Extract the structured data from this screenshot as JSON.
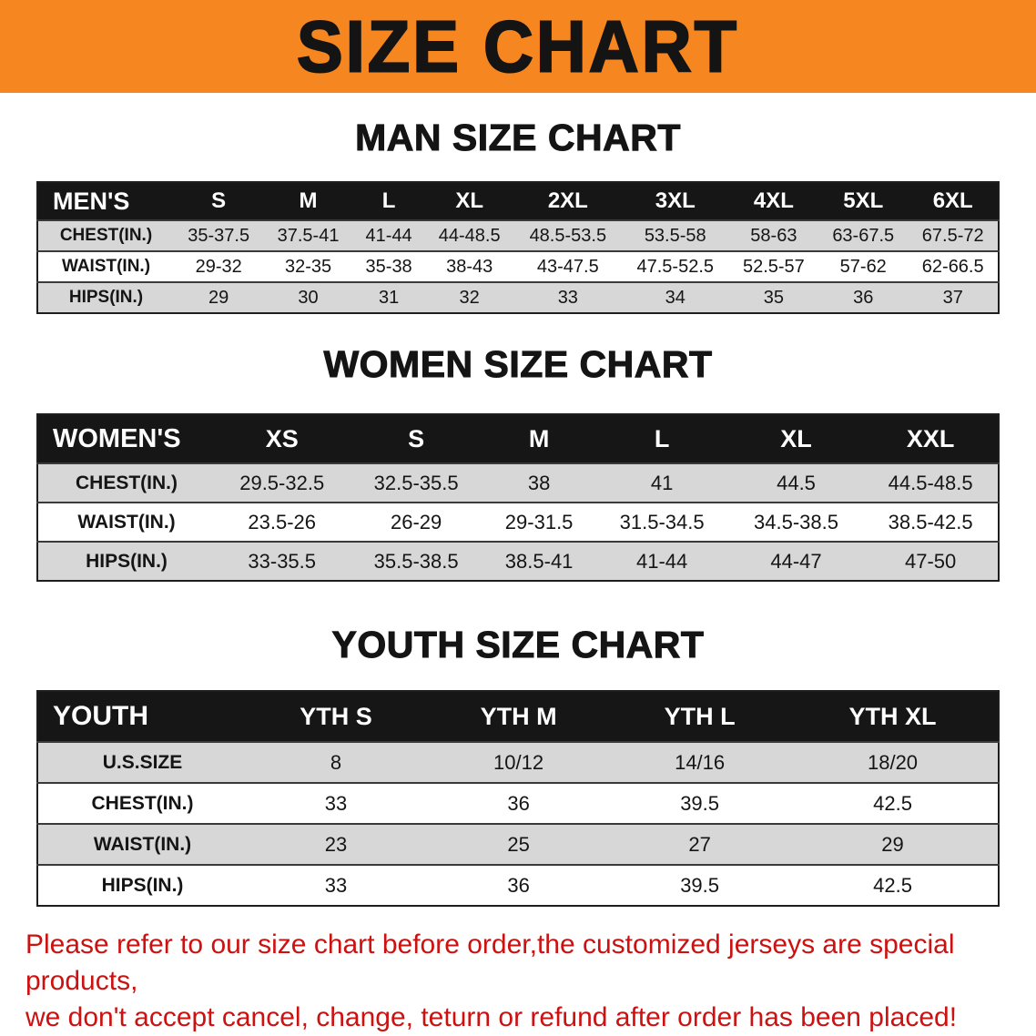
{
  "banner": {
    "title": "SIZE CHART"
  },
  "colors": {
    "banner_bg": "#f6861f",
    "table_header_bg": "#161616",
    "stripe_gray": "#d7d7d7",
    "notice_red": "#cc1111"
  },
  "sections": [
    {
      "heading": "MAN SIZE CHART",
      "table": {
        "title": "MEN'S",
        "columns": [
          "S",
          "M",
          "L",
          "XL",
          "2XL",
          "3XL",
          "4XL",
          "5XL",
          "6XL"
        ],
        "rows": [
          {
            "label": "CHEST(IN.)",
            "values": [
              "35-37.5",
              "37.5-41",
              "41-44",
              "44-48.5",
              "48.5-53.5",
              "53.5-58",
              "58-63",
              "63-67.5",
              "67.5-72"
            ]
          },
          {
            "label": "WAIST(IN.)",
            "values": [
              "29-32",
              "32-35",
              "35-38",
              "38-43",
              "43-47.5",
              "47.5-52.5",
              "52.5-57",
              "57-62",
              "62-66.5"
            ]
          },
          {
            "label": "HIPS(IN.)",
            "values": [
              "29",
              "30",
              "31",
              "32",
              "33",
              "34",
              "35",
              "36",
              "37"
            ]
          }
        ]
      }
    },
    {
      "heading": "WOMEN SIZE CHART",
      "table": {
        "title": "WOMEN'S",
        "columns": [
          "XS",
          "S",
          "M",
          "L",
          "XL",
          "XXL"
        ],
        "rows": [
          {
            "label": "CHEST(IN.)",
            "values": [
              "29.5-32.5",
              "32.5-35.5",
              "38",
              "41",
              "44.5",
              "44.5-48.5"
            ]
          },
          {
            "label": "WAIST(IN.)",
            "values": [
              "23.5-26",
              "26-29",
              "29-31.5",
              "31.5-34.5",
              "34.5-38.5",
              "38.5-42.5"
            ]
          },
          {
            "label": "HIPS(IN.)",
            "values": [
              "33-35.5",
              "35.5-38.5",
              "38.5-41",
              "41-44",
              "44-47",
              "47-50"
            ]
          }
        ]
      }
    },
    {
      "heading": "YOUTH SIZE CHART",
      "table": {
        "title": "YOUTH",
        "columns": [
          "YTH S",
          "YTH M",
          "YTH L",
          "YTH XL"
        ],
        "rows": [
          {
            "label": "U.S.SIZE",
            "values": [
              "8",
              "10/12",
              "14/16",
              "18/20"
            ]
          },
          {
            "label": "CHEST(IN.)",
            "values": [
              "33",
              "36",
              "39.5",
              "42.5"
            ]
          },
          {
            "label": "WAIST(IN.)",
            "values": [
              "23",
              "25",
              "27",
              "29"
            ]
          },
          {
            "label": "HIPS(IN.)",
            "values": [
              "33",
              "36",
              "39.5",
              "42.5"
            ]
          }
        ]
      }
    }
  ],
  "footer": {
    "line1": "Please refer to our size chart before order,the customized jerseys are special products,",
    "line2": "we don't accept cancel, change, teturn or refund after order has been placed!"
  }
}
